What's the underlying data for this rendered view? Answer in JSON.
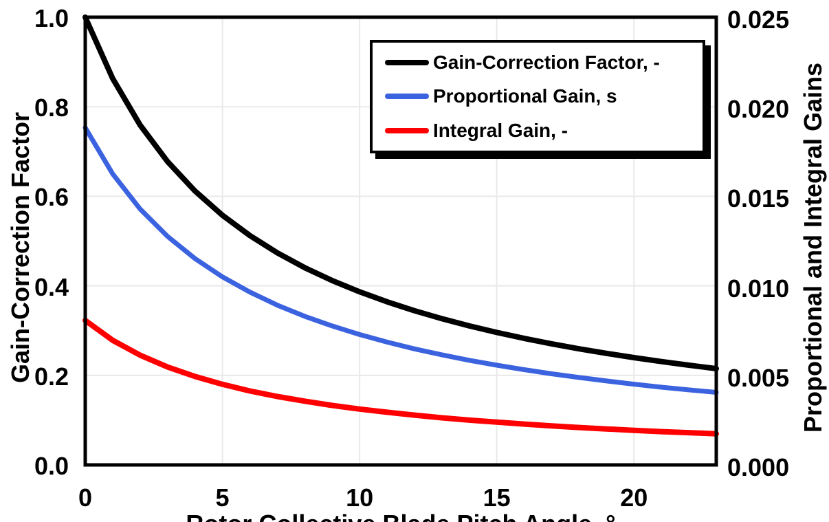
{
  "figure_title": "",
  "axes": {
    "xlabel": "Rotor Collective Blade Pitch Angle, °",
    "ylabel_left": "Gain-Correction Factor",
    "ylabel_right": "Proportional and Integral Gains"
  },
  "chart_data": {
    "type": "line",
    "title": "",
    "xlabel": "Rotor Collective Blade Pitch Angle, °",
    "ylabel_left": "Gain-Correction Factor",
    "ylabel_right": "Proportional and Integral Gains",
    "xlim": [
      0,
      23
    ],
    "ylim_left": [
      0.0,
      1.0
    ],
    "ylim_right": [
      0.0,
      0.025
    ],
    "x_ticks": [
      0,
      5,
      10,
      15,
      20
    ],
    "y_ticks_left": [
      "0.0",
      "0.2",
      "0.4",
      "0.6",
      "0.8",
      "1.0"
    ],
    "y_ticks_right": [
      "0.000",
      "0.005",
      "0.010",
      "0.015",
      "0.020",
      "0.025"
    ],
    "grid": true,
    "grid_color": "#e9e9e9",
    "frame_color": "#000000",
    "legend_position": "top-right-inside",
    "x": [
      0,
      1,
      2,
      3,
      4,
      5,
      6,
      7,
      8,
      9,
      10,
      11,
      12,
      13,
      14,
      15,
      16,
      17,
      18,
      19,
      20,
      21,
      22,
      23
    ],
    "series": [
      {
        "name": "Gain-Correction Factor, -",
        "axis": "left",
        "color": "#000000",
        "values": [
          1.0,
          0.8631,
          0.7591,
          0.6775,
          0.6117,
          0.5576,
          0.5123,
          0.4738,
          0.4406,
          0.4119,
          0.3866,
          0.3643,
          0.3444,
          0.3265,
          0.3104,
          0.2959,
          0.2826,
          0.2705,
          0.2593,
          0.2491,
          0.2396,
          0.2308,
          0.2227,
          0.2151
        ]
      },
      {
        "name": "Proportional Gain, s",
        "axis": "right",
        "color": "#3C63DF",
        "values": [
          0.01883,
          0.01625,
          0.01429,
          0.01276,
          0.01152,
          0.0105,
          0.00965,
          0.00892,
          0.0083,
          0.00776,
          0.00728,
          0.00686,
          0.00648,
          0.00615,
          0.00584,
          0.00557,
          0.00532,
          0.00509,
          0.00488,
          0.00469,
          0.00451,
          0.00434,
          0.00419,
          0.00405
        ]
      },
      {
        "name": "Integral Gain, -",
        "axis": "right",
        "color": "#FF0000",
        "values": [
          0.00807,
          0.00696,
          0.00613,
          0.00547,
          0.00494,
          0.0045,
          0.00413,
          0.00382,
          0.00356,
          0.00332,
          0.00312,
          0.00294,
          0.00278,
          0.00263,
          0.0025,
          0.00239,
          0.00228,
          0.00218,
          0.00209,
          0.00201,
          0.00193,
          0.00186,
          0.0018,
          0.00174
        ]
      }
    ]
  }
}
